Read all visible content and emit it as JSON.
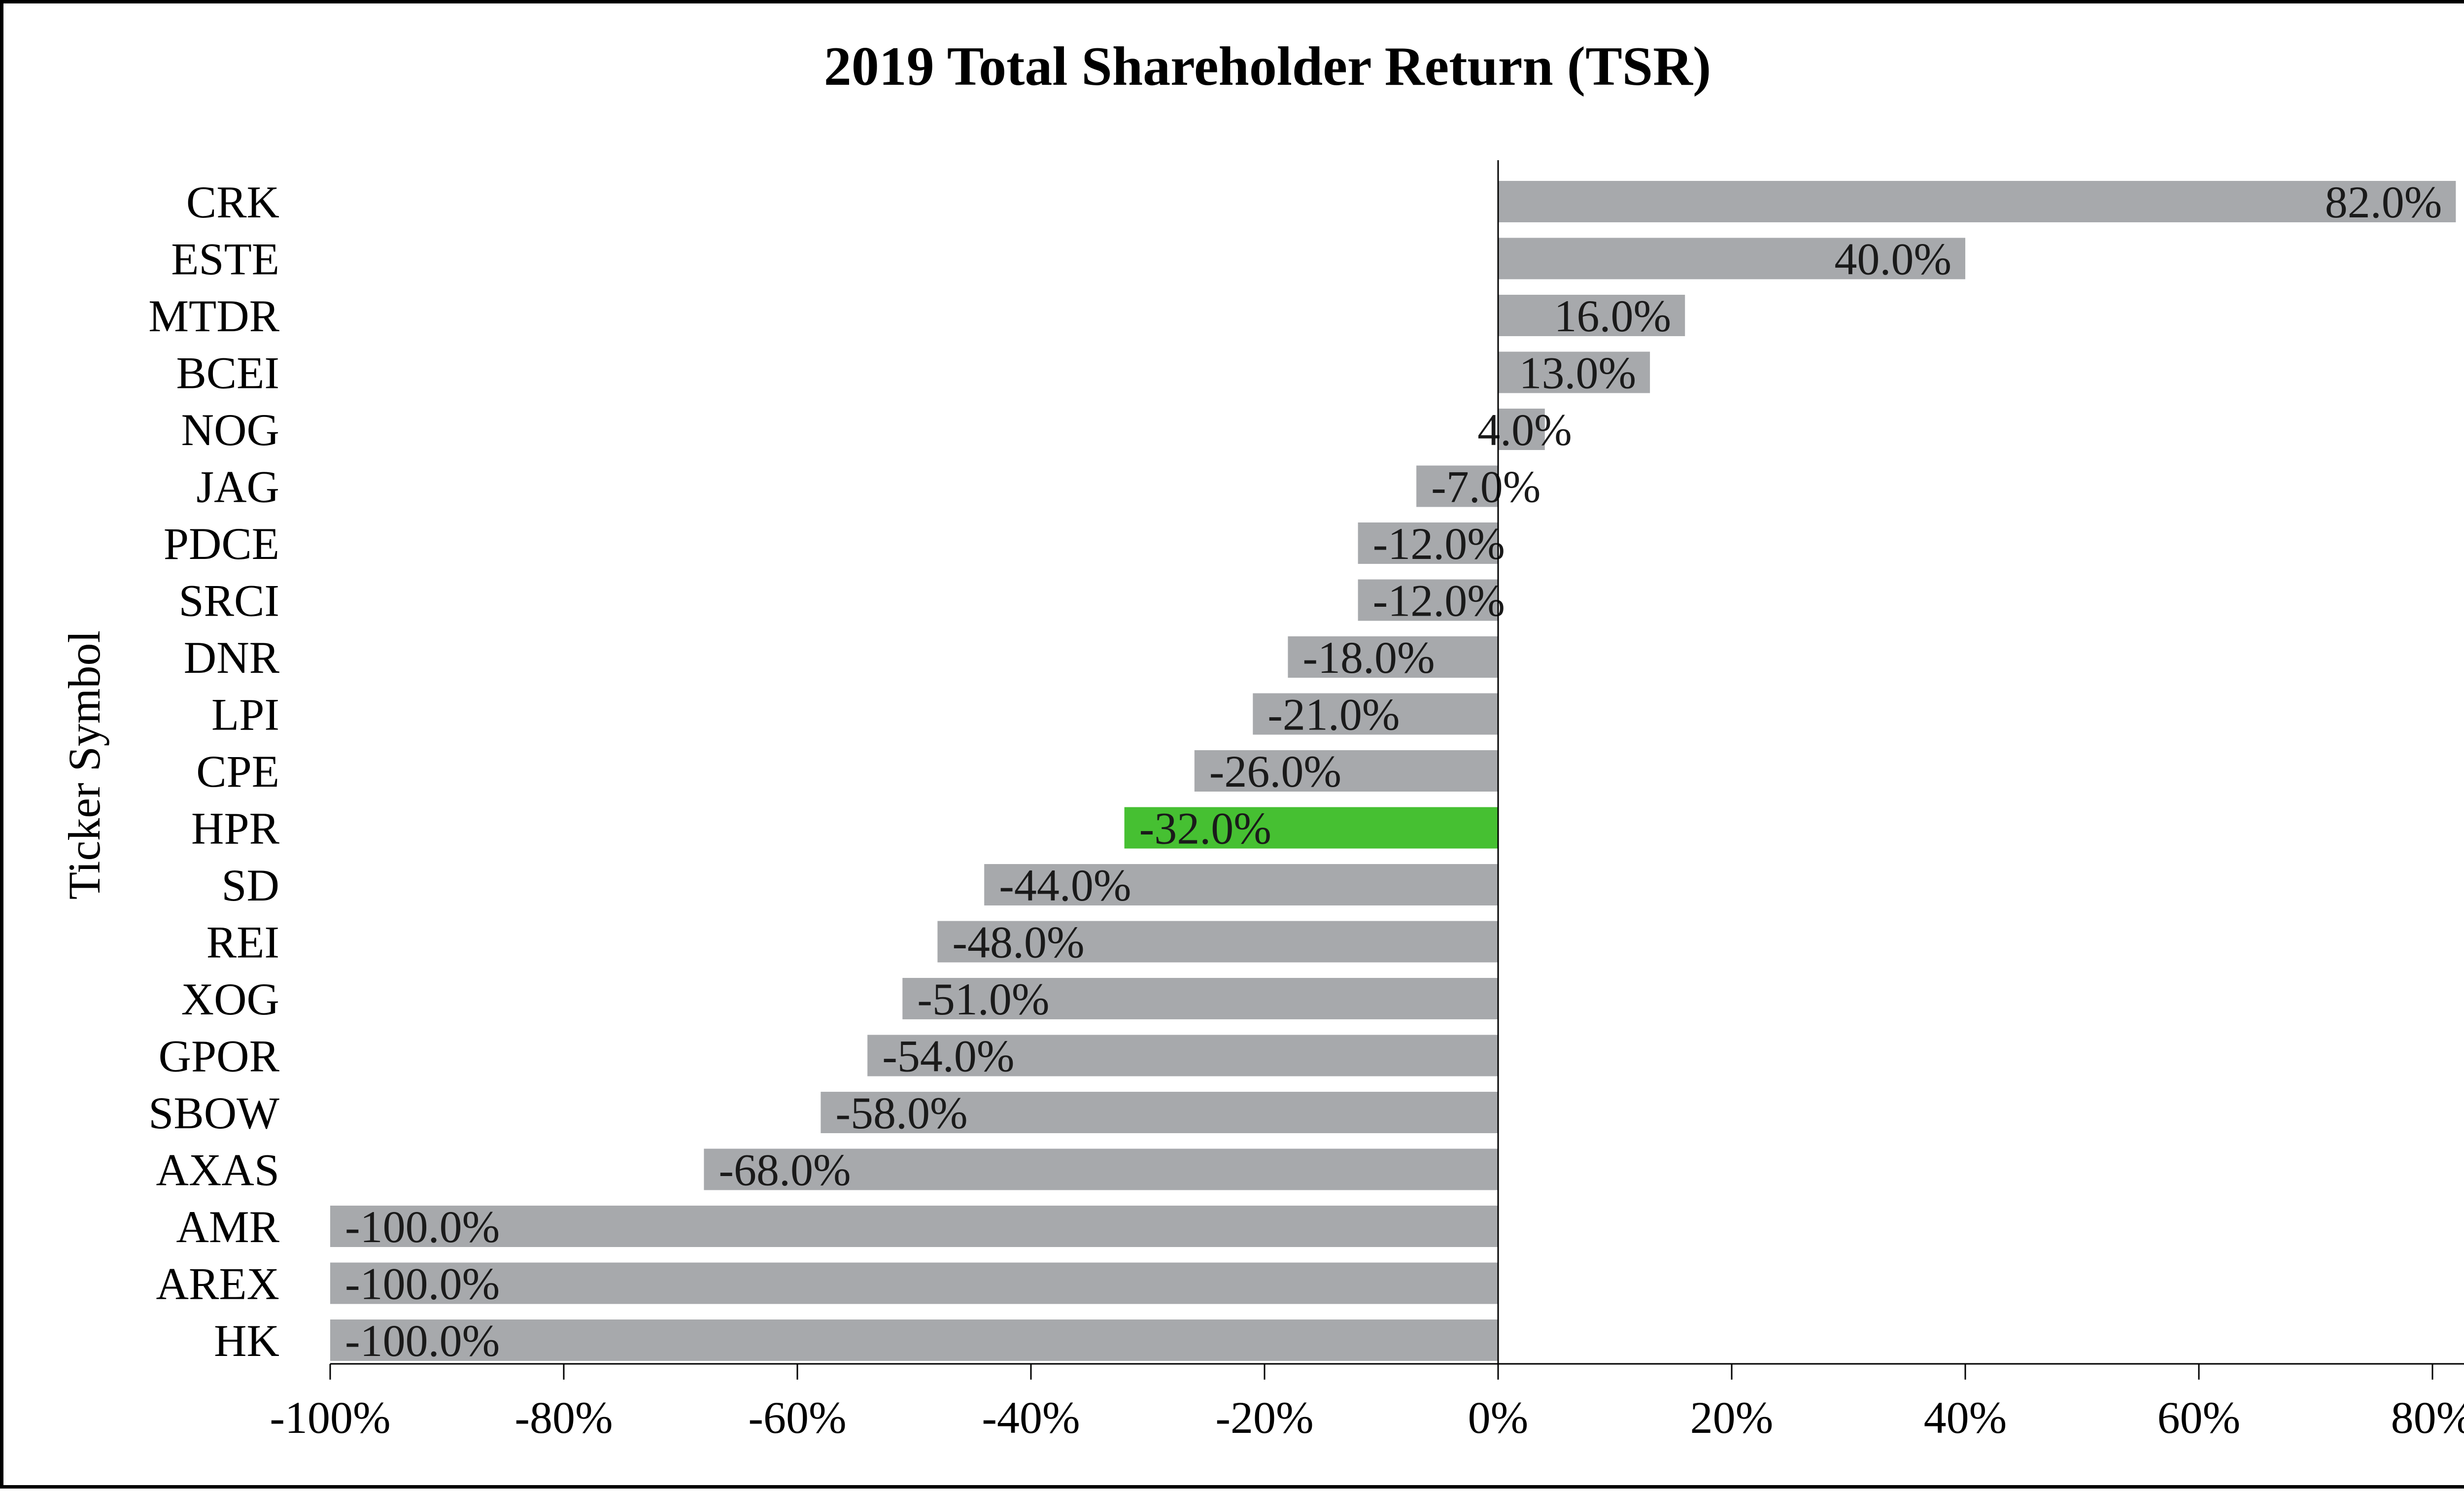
{
  "chart_data": {
    "type": "bar",
    "orientation": "horizontal",
    "title": "2019 Total Shareholder Return (TSR)",
    "xlabel": "",
    "ylabel": "Ticker Symbol",
    "xlim": [
      -100,
      85
    ],
    "xticks": [
      -100,
      -80,
      -60,
      -40,
      -20,
      0,
      20,
      40,
      60,
      80
    ],
    "xtick_labels": [
      "-100%",
      "-80%",
      "-60%",
      "-40%",
      "-20%",
      "0%",
      "20%",
      "40%",
      "60%",
      "80%"
    ],
    "categories": [
      "CRK",
      "ESTE",
      "MTDR",
      "BCEI",
      "NOG",
      "JAG",
      "PDCE",
      "SRCI",
      "DNR",
      "LPI",
      "CPE",
      "HPR",
      "SD",
      "REI",
      "XOG",
      "GPOR",
      "SBOW",
      "AXAS",
      "AMR",
      "AREX",
      "HK"
    ],
    "values": [
      82.0,
      40.0,
      16.0,
      13.0,
      4.0,
      -7.0,
      -12.0,
      -12.0,
      -18.0,
      -21.0,
      -26.0,
      -32.0,
      -44.0,
      -48.0,
      -51.0,
      -54.0,
      -58.0,
      -68.0,
      -100.0,
      -100.0,
      -100.0
    ],
    "data_labels": [
      "82.0%",
      "40.0%",
      "16.0%",
      "13.0%",
      "4.0%",
      "-7.0%",
      "-12.0%",
      "-12.0%",
      "-18.0%",
      "-21.0%",
      "-26.0%",
      "-32.0%",
      "-44.0%",
      "-48.0%",
      "-51.0%",
      "-54.0%",
      "-58.0%",
      "-68.0%",
      "-100.0%",
      "-100.0%",
      "-100.0%"
    ],
    "highlight": "HPR",
    "colors": {
      "bar": "#a7a9ac",
      "highlight": "#46c032",
      "axis": "#000000"
    },
    "grid": false,
    "legend": "none"
  }
}
